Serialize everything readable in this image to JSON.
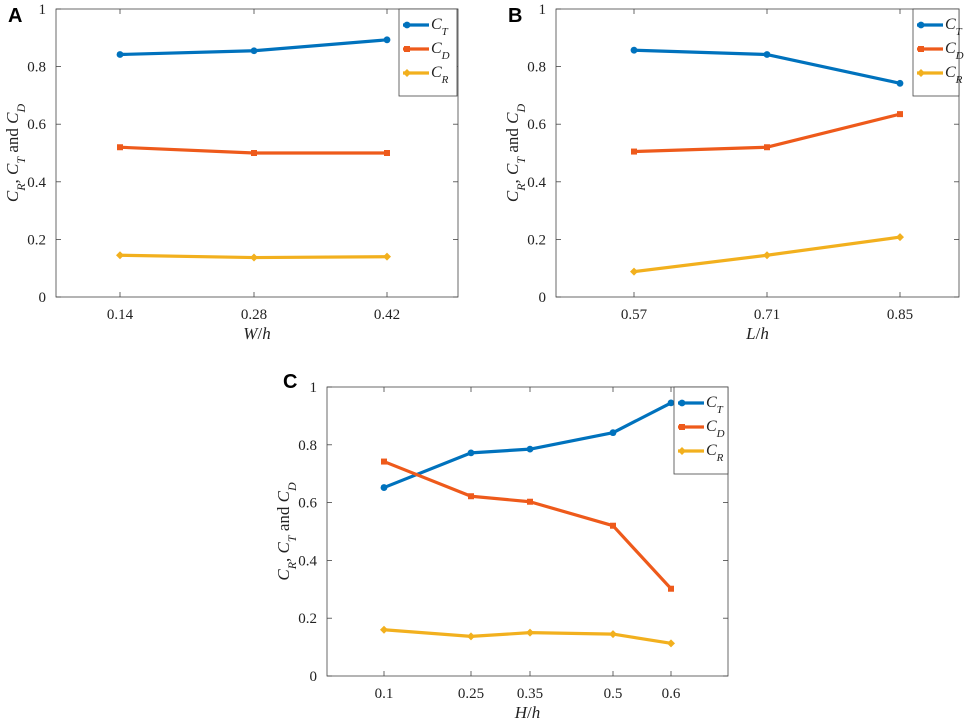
{
  "figure": {
    "panels": [
      "A",
      "B",
      "C"
    ]
  },
  "colors": {
    "CT": "#0072BD",
    "CD": "#EE5A1B",
    "CR": "#F2B01E"
  },
  "chart_data": [
    {
      "panel": "A",
      "type": "line",
      "categories": [
        "0.14",
        "0.28",
        "0.42"
      ],
      "x": [
        0.14,
        0.28,
        0.42
      ],
      "xlabel": "W/h",
      "ylabel": "C_R, C_T and C_D",
      "ylim": [
        0,
        1
      ],
      "yticks": [
        "0",
        "0.2",
        "0.4",
        "0.6",
        "0.8",
        "1"
      ],
      "legend_position": "top-right",
      "series": [
        {
          "name": "C_T",
          "key": "CT",
          "values": [
            0.842,
            0.855,
            0.893
          ]
        },
        {
          "name": "C_D",
          "key": "CD",
          "values": [
            0.52,
            0.5,
            0.5
          ]
        },
        {
          "name": "C_R",
          "key": "CR",
          "values": [
            0.145,
            0.137,
            0.14
          ]
        }
      ]
    },
    {
      "panel": "B",
      "type": "line",
      "categories": [
        "0.57",
        "0.71",
        "0.85"
      ],
      "x": [
        0.57,
        0.71,
        0.85
      ],
      "xlabel": "L/h",
      "ylabel": "C_R, C_T and C_D",
      "ylim": [
        0,
        1
      ],
      "yticks": [
        "0",
        "0.2",
        "0.4",
        "0.6",
        "0.8",
        "1"
      ],
      "legend_position": "top-right",
      "series": [
        {
          "name": "C_T",
          "key": "CT",
          "values": [
            0.857,
            0.842,
            0.742
          ]
        },
        {
          "name": "C_D",
          "key": "CD",
          "values": [
            0.505,
            0.52,
            0.635
          ]
        },
        {
          "name": "C_R",
          "key": "CR",
          "values": [
            0.088,
            0.145,
            0.208
          ]
        }
      ]
    },
    {
      "panel": "C",
      "type": "line",
      "categories": [
        "0.1",
        "0.25",
        "0.35",
        "0.5",
        "0.6"
      ],
      "x": [
        0.1,
        0.25,
        0.35,
        0.5,
        0.6
      ],
      "xlabel": "H/h",
      "ylabel": "C_R, C_T and C_D",
      "ylim": [
        0,
        1
      ],
      "yticks": [
        "0",
        "0.2",
        "0.4",
        "0.6",
        "0.8",
        "1"
      ],
      "legend_position": "top-right",
      "series": [
        {
          "name": "C_T",
          "key": "CT",
          "values": [
            0.652,
            0.772,
            0.785,
            0.842,
            0.945
          ]
        },
        {
          "name": "C_D",
          "key": "CD",
          "values": [
            0.742,
            0.622,
            0.603,
            0.52,
            0.302
          ]
        },
        {
          "name": "C_R",
          "key": "CR",
          "values": [
            0.16,
            0.137,
            0.15,
            0.145,
            0.113
          ]
        }
      ]
    }
  ]
}
